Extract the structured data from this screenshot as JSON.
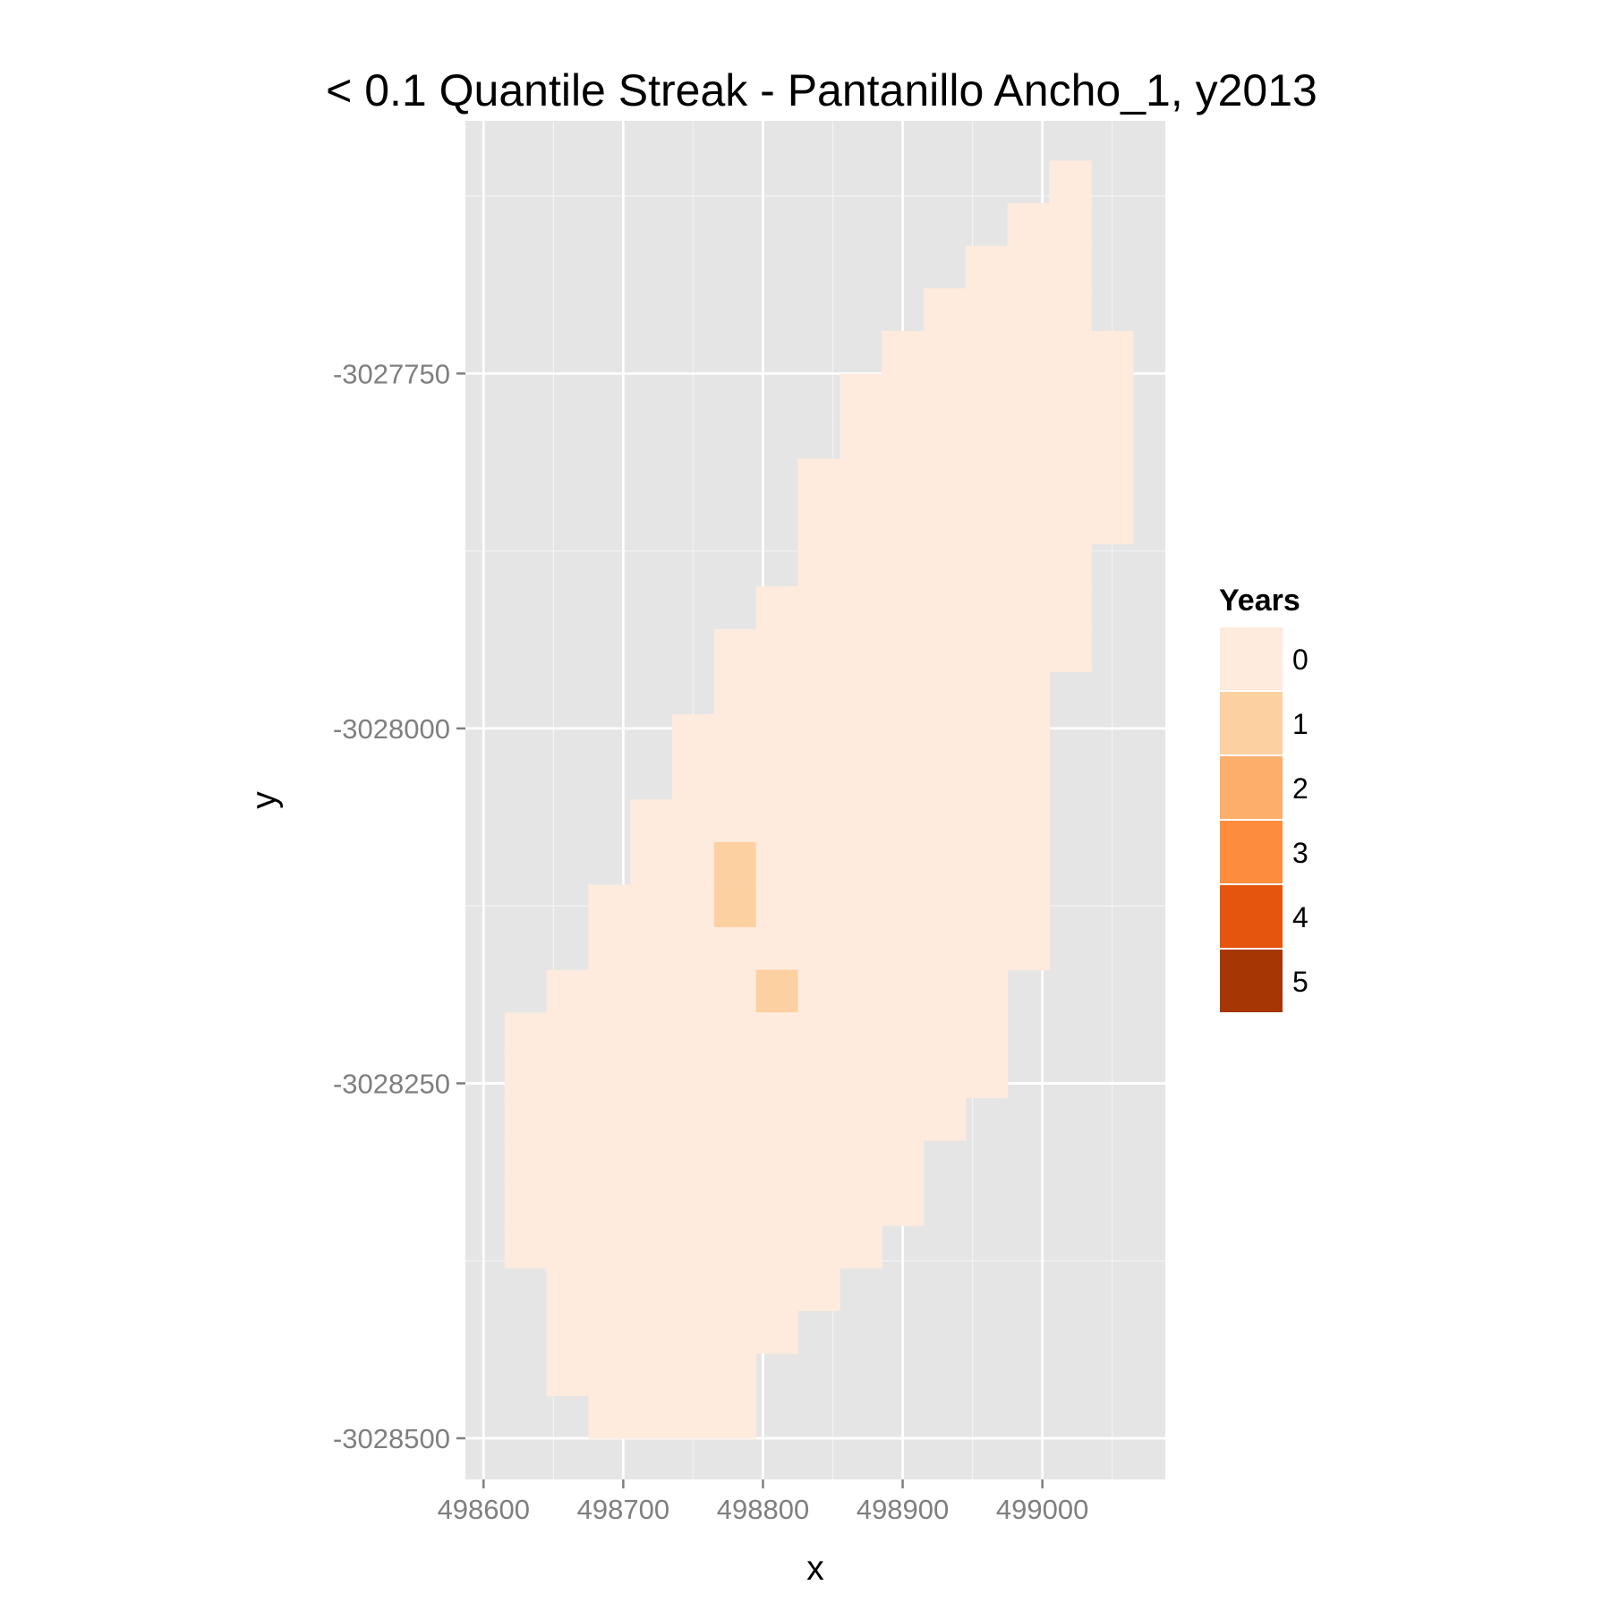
{
  "chart_data": {
    "type": "heatmap",
    "title": "< 0.1 Quantile Streak - Pantanillo Ancho_1, y2013",
    "xlabel": "x",
    "ylabel": "y",
    "xlim": [
      498587,
      499088
    ],
    "ylim": [
      -3028529,
      -3027572
    ],
    "x_ticks": [
      498600,
      498700,
      498800,
      498900,
      499000
    ],
    "y_ticks": [
      -3028500,
      -3028250,
      -3028000,
      -3027750
    ],
    "x_tick_labels": [
      "498600",
      "498700",
      "498800",
      "498900",
      "499000"
    ],
    "y_tick_labels": [
      "-3028500",
      "-3028250",
      "-3028000",
      "-3027750"
    ],
    "cell_size": 30,
    "grid": true,
    "legend": {
      "title": "Years",
      "position": "right",
      "levels": [
        "0",
        "1",
        "2",
        "3",
        "4",
        "5"
      ],
      "colors": [
        "#FEEBDD",
        "#FDD0A2",
        "#FDAE6B",
        "#FD8D3C",
        "#E6550D",
        "#A63603"
      ]
    },
    "rows": [
      {
        "y": -3027615,
        "x_start": 499020,
        "x_end": 499020,
        "value": 0
      },
      {
        "y": -3027645,
        "x_start": 498990,
        "x_end": 499020,
        "value": 0
      },
      {
        "y": -3027675,
        "x_start": 498960,
        "x_end": 499020,
        "value": 0
      },
      {
        "y": -3027705,
        "x_start": 498930,
        "x_end": 499020,
        "value": 0
      },
      {
        "y": -3027735,
        "x_start": 498900,
        "x_end": 499050,
        "value": 0
      },
      {
        "y": -3027765,
        "x_start": 498870,
        "x_end": 499050,
        "value": 0
      },
      {
        "y": -3027795,
        "x_start": 498870,
        "x_end": 499050,
        "value": 0
      },
      {
        "y": -3027825,
        "x_start": 498840,
        "x_end": 499050,
        "value": 0
      },
      {
        "y": -3027855,
        "x_start": 498840,
        "x_end": 499050,
        "value": 0
      },
      {
        "y": -3027885,
        "x_start": 498840,
        "x_end": 499020,
        "value": 0
      },
      {
        "y": -3027915,
        "x_start": 498810,
        "x_end": 499020,
        "value": 0
      },
      {
        "y": -3027945,
        "x_start": 498780,
        "x_end": 499020,
        "value": 0
      },
      {
        "y": -3027975,
        "x_start": 498780,
        "x_end": 498990,
        "value": 0
      },
      {
        "y": -3028005,
        "x_start": 498750,
        "x_end": 498990,
        "value": 0
      },
      {
        "y": -3028035,
        "x_start": 498750,
        "x_end": 498990,
        "value": 0
      },
      {
        "y": -3028065,
        "x_start": 498720,
        "x_end": 498990,
        "value": 0
      },
      {
        "y": -3028095,
        "x_start": 498720,
        "x_end": 498990,
        "value": 0
      },
      {
        "y": -3028125,
        "x_start": 498690,
        "x_end": 498990,
        "value": 0
      },
      {
        "y": -3028155,
        "x_start": 498690,
        "x_end": 498990,
        "value": 0
      },
      {
        "y": -3028185,
        "x_start": 498660,
        "x_end": 498960,
        "value": 0
      },
      {
        "y": -3028215,
        "x_start": 498630,
        "x_end": 498960,
        "value": 0
      },
      {
        "y": -3028245,
        "x_start": 498630,
        "x_end": 498960,
        "value": 0
      },
      {
        "y": -3028275,
        "x_start": 498630,
        "x_end": 498930,
        "value": 0
      },
      {
        "y": -3028305,
        "x_start": 498630,
        "x_end": 498900,
        "value": 0
      },
      {
        "y": -3028335,
        "x_start": 498630,
        "x_end": 498900,
        "value": 0
      },
      {
        "y": -3028365,
        "x_start": 498630,
        "x_end": 498870,
        "value": 0
      },
      {
        "y": -3028395,
        "x_start": 498660,
        "x_end": 498840,
        "value": 0
      },
      {
        "y": -3028425,
        "x_start": 498660,
        "x_end": 498810,
        "value": 0
      },
      {
        "y": -3028455,
        "x_start": 498660,
        "x_end": 498780,
        "value": 0
      },
      {
        "y": -3028485,
        "x_start": 498690,
        "x_end": 498780,
        "value": 0
      }
    ],
    "highlight_cells": [
      {
        "x": 498780,
        "y": -3028095,
        "value": 1
      },
      {
        "x": 498780,
        "y": -3028125,
        "value": 1
      },
      {
        "x": 498810,
        "y": -3028185,
        "value": 1
      }
    ]
  }
}
